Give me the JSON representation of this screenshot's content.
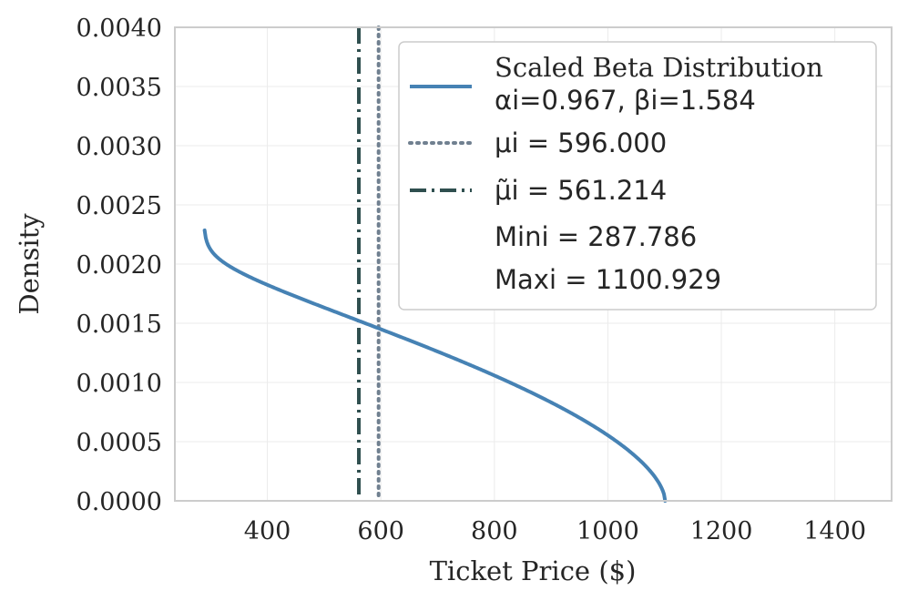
{
  "chart_data": {
    "type": "line",
    "title": "",
    "xlabel": "Ticket Price ($)",
    "ylabel": "Density",
    "xlim": [
      237,
      1500
    ],
    "ylim": [
      0,
      0.004
    ],
    "grid": true,
    "x_ticks": [
      400,
      600,
      800,
      1000,
      1200,
      1400
    ],
    "x_tick_labels": [
      "400",
      "600",
      "800",
      "1000",
      "1200",
      "1400"
    ],
    "y_ticks": [
      0,
      0.0005,
      0.001,
      0.0015,
      0.002,
      0.0025,
      0.003,
      0.0035,
      0.004
    ],
    "y_tick_labels": [
      "0.0000",
      "0.0005",
      "0.0010",
      "0.0015",
      "0.0020",
      "0.0025",
      "0.0030",
      "0.0035",
      "0.0040"
    ],
    "beta": {
      "alpha": 0.967,
      "beta": 1.584,
      "min": 287.786,
      "max": 1100.929
    },
    "vlines": [
      {
        "name": "mean",
        "x": 596.0,
        "color": "#708090",
        "style": "dotted"
      },
      {
        "name": "median",
        "x": 561.214,
        "color": "#2f4f4f",
        "style": "dashdot"
      }
    ],
    "curve_color": "#4682b4",
    "legend_position": "upper-right",
    "legend": {
      "entry1_line1": "Scaled Beta Distribution",
      "entry1_line2": "αi=0.967, βi=1.584",
      "entry2": "μi = 596.000",
      "entry3": "μ̃i = 561.214",
      "entry4": "Mini = 287.786",
      "entry5": "Maxi = 1100.929"
    }
  }
}
